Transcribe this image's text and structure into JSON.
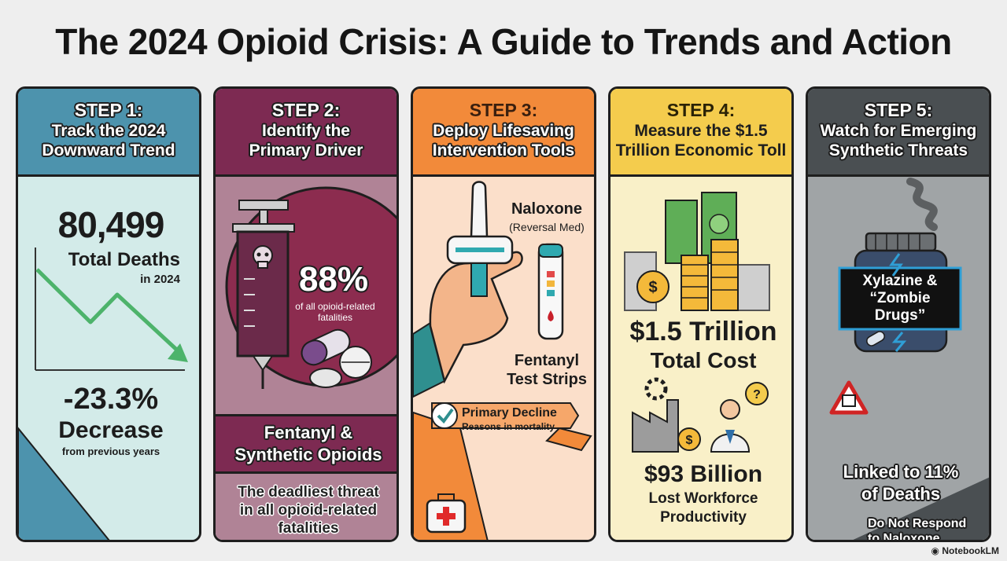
{
  "title": "The 2024 Opioid Crisis: A Guide to Trends and Action",
  "brand": "NotebookLM",
  "colors": {
    "step1": "#4d93ad",
    "step2": "#7d2a52",
    "step3": "#f28a3a",
    "step4": "#f4cc4d",
    "step5": "#4a4f52"
  },
  "steps": [
    {
      "label": "STEP 1:",
      "heading": [
        "Track the 2024",
        "Downward Trend"
      ],
      "big_number": "80,499",
      "big_label": "Total Deaths",
      "big_sub": "in 2024",
      "change": "-23.3%",
      "change_label": "Decrease",
      "change_sub": "from previous years"
    },
    {
      "label": "STEP 2:",
      "heading": [
        "Identify the",
        "Primary Driver"
      ],
      "percent": "88%",
      "percent_sub": [
        "of all opioid-related",
        "fatalities"
      ],
      "driver": [
        "Fentanyl &",
        "Synthetic Opioids"
      ],
      "driver_desc": [
        "The deadliest threat",
        "in all opioid-related",
        "fatalities"
      ]
    },
    {
      "label": "STEP 3:",
      "heading": [
        "Deploy Lifesaving",
        "Intervention Tools"
      ],
      "tool1": "Naloxone",
      "tool1_sub": "(Reversal Med)",
      "tool2": [
        "Fentanyl",
        "Test Strips"
      ],
      "banner": [
        "Primary Decline",
        "Reasons in mortality"
      ]
    },
    {
      "label": "STEP 4:",
      "heading": [
        "Measure the $1.5",
        "Trillion Economic Toll"
      ],
      "cost": "$1.5 Trillion",
      "cost_label": "Total Cost",
      "loss": "$93 Billion",
      "loss_label": [
        "Lost Workforce",
        "Productivity"
      ]
    },
    {
      "label": "STEP 5:",
      "heading": [
        "Watch for Emerging",
        "Synthetic Threats"
      ],
      "threat": [
        "Xylazine &",
        "“Zombie",
        "Drugs”"
      ],
      "linked": [
        "Linked to 11%",
        "of Deaths"
      ],
      "warning": [
        "Do Not Respond",
        "to Naloxone"
      ]
    }
  ]
}
